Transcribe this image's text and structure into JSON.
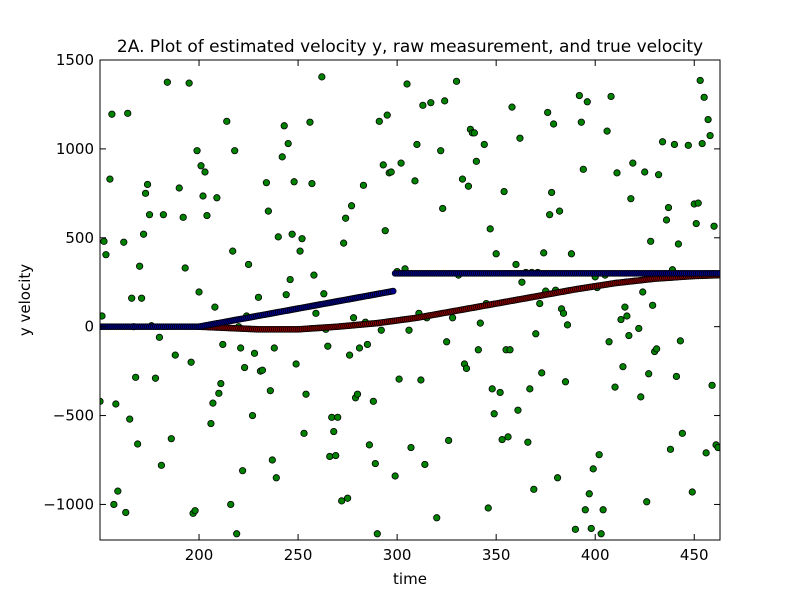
{
  "chart_data": {
    "type": "scatter",
    "title": "2A. Plot of estimated velocity y, raw measurement, and true velocity",
    "xlabel": "time",
    "ylabel": "y velocity",
    "xlim": [
      150,
      463
    ],
    "ylim": [
      -1200,
      1500
    ],
    "xticks": [
      200,
      250,
      300,
      350,
      400,
      450
    ],
    "xtick_labels": [
      "200",
      "250",
      "300",
      "350",
      "400",
      "450"
    ],
    "yticks": [
      -1000,
      -500,
      0,
      500,
      1000,
      1500
    ],
    "ytick_labels": [
      "−1000",
      "−500",
      "0",
      "500",
      "1000",
      "1500"
    ],
    "grid": false,
    "legend": null,
    "series": [
      {
        "role": "raw measurement",
        "color": "#008000",
        "marker": "circle",
        "points": [
          [
            150,
            -420
          ],
          [
            151,
            60
          ],
          [
            152,
            480
          ],
          [
            153,
            405
          ],
          [
            155,
            830
          ],
          [
            156,
            1195
          ],
          [
            157,
            -1000
          ],
          [
            158,
            -435
          ],
          [
            159,
            -925
          ],
          [
            162,
            475
          ],
          [
            163,
            -1045
          ],
          [
            164,
            1200
          ],
          [
            165,
            -520
          ],
          [
            166,
            160
          ],
          [
            167,
            0
          ],
          [
            168,
            -285
          ],
          [
            169,
            -660
          ],
          [
            170,
            340
          ],
          [
            171,
            160
          ],
          [
            172,
            520
          ],
          [
            173,
            750
          ],
          [
            174,
            800
          ],
          [
            175,
            630
          ],
          [
            176,
            5
          ],
          [
            178,
            -290
          ],
          [
            180,
            -60
          ],
          [
            181,
            -780
          ],
          [
            182,
            630
          ],
          [
            184,
            1375
          ],
          [
            186,
            -630
          ],
          [
            188,
            -160
          ],
          [
            190,
            780
          ],
          [
            192,
            615
          ],
          [
            193,
            330
          ],
          [
            195,
            1370
          ],
          [
            196,
            -200
          ],
          [
            197,
            -1050
          ],
          [
            198,
            -1035
          ],
          [
            199,
            990
          ],
          [
            200,
            195
          ],
          [
            201,
            905
          ],
          [
            202,
            735
          ],
          [
            203,
            870
          ],
          [
            204,
            625
          ],
          [
            206,
            -545
          ],
          [
            207,
            -430
          ],
          [
            208,
            110
          ],
          [
            209,
            725
          ],
          [
            210,
            -375
          ],
          [
            211,
            -320
          ],
          [
            212,
            -100
          ],
          [
            214,
            1155
          ],
          [
            216,
            -1000
          ],
          [
            217,
            425
          ],
          [
            218,
            990
          ],
          [
            219,
            -1165
          ],
          [
            220,
            0
          ],
          [
            221,
            -120
          ],
          [
            222,
            -810
          ],
          [
            223,
            -230
          ],
          [
            224,
            60
          ],
          [
            225,
            350
          ],
          [
            227,
            -500
          ],
          [
            228,
            -150
          ],
          [
            230,
            165
          ],
          [
            231,
            -250
          ],
          [
            232,
            -245
          ],
          [
            234,
            810
          ],
          [
            235,
            650
          ],
          [
            236,
            -360
          ],
          [
            237,
            -750
          ],
          [
            238,
            -120
          ],
          [
            239,
            -850
          ],
          [
            240,
            505
          ],
          [
            242,
            955
          ],
          [
            243,
            1130
          ],
          [
            244,
            180
          ],
          [
            245,
            1030
          ],
          [
            246,
            265
          ],
          [
            247,
            520
          ],
          [
            248,
            815
          ],
          [
            249,
            -210
          ],
          [
            251,
            425
          ],
          [
            252,
            495
          ],
          [
            253,
            -600
          ],
          [
            254,
            -380
          ],
          [
            256,
            1150
          ],
          [
            257,
            805
          ],
          [
            258,
            290
          ],
          [
            259,
            75
          ],
          [
            262,
            1405
          ],
          [
            263,
            185
          ],
          [
            264,
            -15
          ],
          [
            265,
            -110
          ],
          [
            266,
            -730
          ],
          [
            267,
            -510
          ],
          [
            268,
            -590
          ],
          [
            269,
            -725
          ],
          [
            270,
            -510
          ],
          [
            272,
            -980
          ],
          [
            273,
            470
          ],
          [
            274,
            610
          ],
          [
            275,
            -965
          ],
          [
            276,
            -160
          ],
          [
            277,
            680
          ],
          [
            278,
            50
          ],
          [
            279,
            -400
          ],
          [
            280,
            -380
          ],
          [
            281,
            -120
          ],
          [
            283,
            795
          ],
          [
            284,
            25
          ],
          [
            285,
            -100
          ],
          [
            286,
            -665
          ],
          [
            288,
            -420
          ],
          [
            289,
            -770
          ],
          [
            290,
            -1165
          ],
          [
            291,
            1155
          ],
          [
            292,
            -20
          ],
          [
            293,
            910
          ],
          [
            294,
            540
          ],
          [
            295,
            1190
          ],
          [
            296,
            865
          ],
          [
            297,
            870
          ],
          [
            299,
            -840
          ],
          [
            300,
            310
          ],
          [
            301,
            -295
          ],
          [
            302,
            920
          ],
          [
            304,
            325
          ],
          [
            305,
            1365
          ],
          [
            306,
            -20
          ],
          [
            307,
            -680
          ],
          [
            309,
            820
          ],
          [
            310,
            1025
          ],
          [
            311,
            75
          ],
          [
            312,
            -300
          ],
          [
            313,
            1245
          ],
          [
            314,
            -775
          ],
          [
            315,
            50
          ],
          [
            317,
            1260
          ],
          [
            320,
            -1075
          ],
          [
            322,
            990
          ],
          [
            323,
            665
          ],
          [
            324,
            1270
          ],
          [
            325,
            -85
          ],
          [
            326,
            -640
          ],
          [
            328,
            50
          ],
          [
            330,
            1380
          ],
          [
            331,
            290
          ],
          [
            333,
            830
          ],
          [
            334,
            -210
          ],
          [
            335,
            -235
          ],
          [
            336,
            790
          ],
          [
            337,
            1110
          ],
          [
            338,
            1090
          ],
          [
            339,
            1090
          ],
          [
            340,
            930
          ],
          [
            341,
            -130
          ],
          [
            342,
            20
          ],
          [
            344,
            1025
          ],
          [
            345,
            130
          ],
          [
            346,
            -1020
          ],
          [
            347,
            550
          ],
          [
            348,
            -350
          ],
          [
            349,
            -490
          ],
          [
            350,
            410
          ],
          [
            352,
            -370
          ],
          [
            353,
            -635
          ],
          [
            354,
            760
          ],
          [
            355,
            -130
          ],
          [
            356,
            -620
          ],
          [
            357,
            -130
          ],
          [
            358,
            1235
          ],
          [
            360,
            350
          ],
          [
            361,
            -470
          ],
          [
            362,
            1060
          ],
          [
            363,
            250
          ],
          [
            365,
            305
          ],
          [
            366,
            -650
          ],
          [
            367,
            -350
          ],
          [
            368,
            305
          ],
          [
            369,
            -915
          ],
          [
            370,
            -40
          ],
          [
            371,
            305
          ],
          [
            372,
            130
          ],
          [
            373,
            -260
          ],
          [
            374,
            415
          ],
          [
            375,
            200
          ],
          [
            376,
            1205
          ],
          [
            377,
            630
          ],
          [
            378,
            755
          ],
          [
            379,
            1140
          ],
          [
            380,
            205
          ],
          [
            381,
            -850
          ],
          [
            382,
            650
          ],
          [
            383,
            100
          ],
          [
            384,
            75
          ],
          [
            385,
            -310
          ],
          [
            386,
            10
          ],
          [
            388,
            410
          ],
          [
            390,
            -1140
          ],
          [
            392,
            1300
          ],
          [
            393,
            1150
          ],
          [
            394,
            885
          ],
          [
            395,
            -1030
          ],
          [
            396,
            1265
          ],
          [
            397,
            -940
          ],
          [
            398,
            -1135
          ],
          [
            399,
            -800
          ],
          [
            400,
            280
          ],
          [
            401,
            220
          ],
          [
            402,
            -720
          ],
          [
            403,
            -1165
          ],
          [
            404,
            -1030
          ],
          [
            405,
            290
          ],
          [
            406,
            1100
          ],
          [
            407,
            -85
          ],
          [
            408,
            1295
          ],
          [
            410,
            -340
          ],
          [
            411,
            865
          ],
          [
            413,
            40
          ],
          [
            414,
            -225
          ],
          [
            415,
            110
          ],
          [
            416,
            60
          ],
          [
            417,
            -50
          ],
          [
            418,
            720
          ],
          [
            419,
            920
          ],
          [
            422,
            -10
          ],
          [
            423,
            -395
          ],
          [
            424,
            195
          ],
          [
            425,
            870
          ],
          [
            426,
            -985
          ],
          [
            427,
            -265
          ],
          [
            428,
            480
          ],
          [
            429,
            120
          ],
          [
            430,
            -140
          ],
          [
            431,
            -125
          ],
          [
            432,
            855
          ],
          [
            434,
            1040
          ],
          [
            436,
            600
          ],
          [
            437,
            670
          ],
          [
            438,
            -690
          ],
          [
            439,
            320
          ],
          [
            440,
            1025
          ],
          [
            441,
            -280
          ],
          [
            442,
            465
          ],
          [
            443,
            -80
          ],
          [
            444,
            -600
          ],
          [
            447,
            1020
          ],
          [
            449,
            -930
          ],
          [
            450,
            690
          ],
          [
            451,
            580
          ],
          [
            452,
            695
          ],
          [
            453,
            1385
          ],
          [
            454,
            1030
          ],
          [
            455,
            1290
          ],
          [
            456,
            -710
          ],
          [
            457,
            1165
          ],
          [
            458,
            1075
          ],
          [
            459,
            -330
          ],
          [
            460,
            565
          ],
          [
            461,
            -665
          ],
          [
            462,
            -680
          ]
        ]
      },
      {
        "role": "estimated velocity",
        "color": "#00008b",
        "marker": "circle",
        "segments": [
          {
            "x": [
              150,
              200
            ],
            "y": [
              0,
              0
            ]
          },
          {
            "x": [
              200,
              298
            ],
            "y": [
              0,
              200
            ]
          },
          {
            "x": [
              299,
              463
            ],
            "y": [
              300,
              300
            ]
          }
        ]
      },
      {
        "role": "true velocity",
        "color": "#8b0000",
        "marker": "circle",
        "curve": [
          [
            200,
            0
          ],
          [
            230,
            -15
          ],
          [
            250,
            -15
          ],
          [
            270,
            0
          ],
          [
            290,
            20
          ],
          [
            310,
            50
          ],
          [
            330,
            90
          ],
          [
            350,
            130
          ],
          [
            370,
            170
          ],
          [
            390,
            210
          ],
          [
            410,
            245
          ],
          [
            430,
            270
          ],
          [
            450,
            285
          ],
          [
            463,
            290
          ]
        ]
      }
    ]
  }
}
